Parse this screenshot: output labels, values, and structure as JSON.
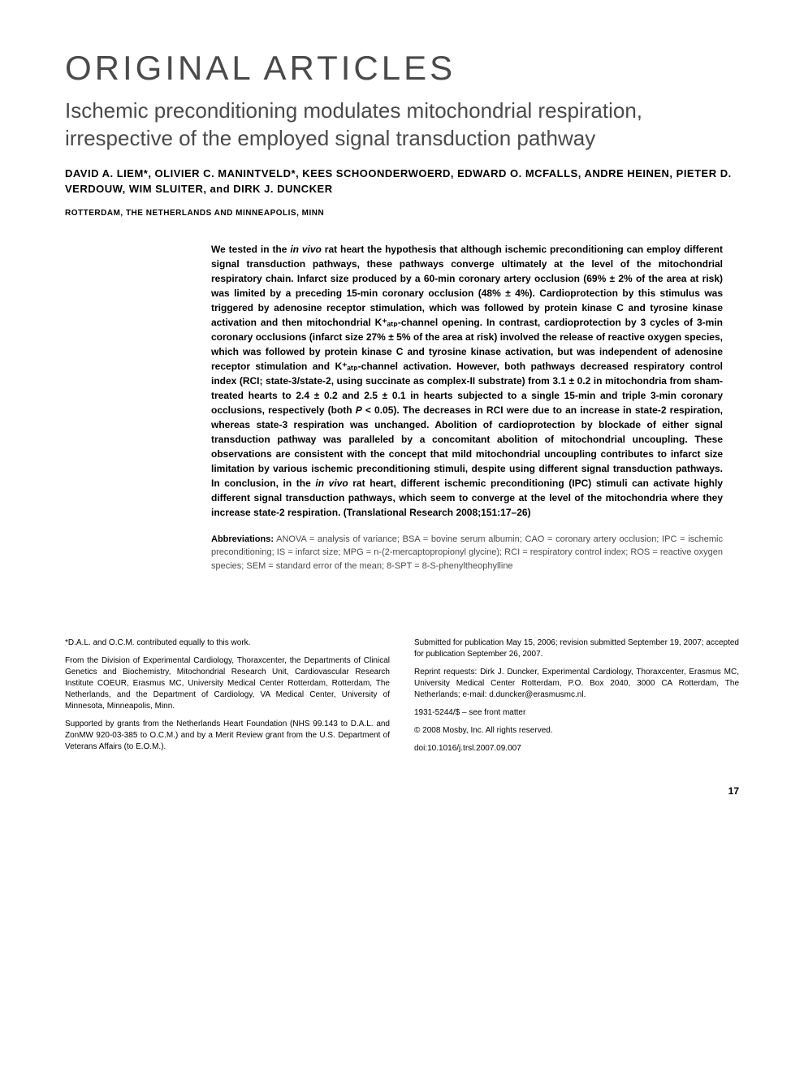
{
  "section_header": "ORIGINAL ARTICLES",
  "article_title": "Ischemic preconditioning modulates mitochondrial respiration, irrespective of the employed signal transduction pathway",
  "authors": "DAVID A. LIEM*, OLIVIER C. MANINTVELD*, KEES SCHOONDERWOERD, EDWARD O. MCFALLS, ANDRE HEINEN, PIETER D. VERDOUW, WIM SLUITER, and DIRK J. DUNCKER",
  "affiliation_line": "ROTTERDAM, THE NETHERLANDS AND MINNEAPOLIS, MINN",
  "abstract_pre": "We tested in the ",
  "abstract_italic1": "in vivo",
  "abstract_mid": " rat heart the hypothesis that although ischemic preconditioning can employ different signal transduction pathways, these pathways converge ultimately at the level of the mitochondrial respiratory chain. Infarct size produced by a 60-min coronary artery occlusion (69% ± 2% of the area at risk) was limited by a preceding 15-min coronary occlusion (48% ± 4%). Cardioprotection by this stimulus was triggered by adenosine receptor stimulation, which was followed by protein kinase C and tyrosine kinase activation and then mitochondrial K⁺ₐₜₚ-channel opening. In contrast, cardioprotection by 3 cycles of 3-min coronary occlusions (infarct size 27% ± 5% of the area at risk) involved the release of reactive oxygen species, which was followed by protein kinase C and tyrosine kinase activation, but was independent of adenosine receptor stimulation and K⁺ₐₜₚ-channel activation. However, both pathways decreased respiratory control index (RCI; state-3/state-2, using succinate as complex-II substrate) from 3.1 ± 0.2 in mitochondria from sham-treated hearts to 2.4 ± 0.2 and 2.5 ± 0.1 in hearts subjected to a single 15-min and triple 3-min coronary occlusions, respectively (both ",
  "abstract_italic2": "P",
  "abstract_mid2": " < 0.05). The decreases in RCI were due to an increase in state-2 respiration, whereas state-3 respiration was unchanged. Abolition of cardioprotection by blockade of either signal transduction pathway was paralleled by a concomitant abolition of mitochondrial uncoupling. These observations are consistent with the concept that mild mitochondrial uncoupling contributes to infarct size limitation by various ischemic preconditioning stimuli, despite using different signal transduction pathways. In conclusion, in the ",
  "abstract_italic3": "in vivo",
  "abstract_end": " rat heart, different ischemic preconditioning (IPC) stimuli can activate highly different signal transduction pathways, which seem to converge at the level of the mitochondria where they increase state-2 respiration. (Translational Research 2008;151:17–26)",
  "abbreviations_label": "Abbreviations:",
  "abbreviations_text": " ANOVA = analysis of variance; BSA = bovine serum albumin; CAO = coronary artery occlusion; IPC = ischemic preconditioning; IS = infarct size; MPG = n-(2-mercaptopropionyl glycine); RCI = respiratory control index; ROS = reactive oxygen species; SEM = standard error of the mean; 8-SPT = 8-S-phenyltheophylline",
  "footnote_left_1": "*D.A.L. and O.C.M. contributed equally to this work.",
  "footnote_left_2": "From the Division of Experimental Cardiology, Thoraxcenter, the Departments of Clinical Genetics and Biochemistry, Mitochondrial Research Unit, Cardiovascular Research Institute COEUR, Erasmus MC, University Medical Center Rotterdam, Rotterdam, The Netherlands, and the Department of Cardiology, VA Medical Center, University of Minnesota, Minneapolis, Minn.",
  "footnote_left_3": "Supported by grants from the Netherlands Heart Foundation (NHS 99.143 to D.A.L. and ZonMW 920-03-385 to O.C.M.) and by a Merit Review grant from the U.S. Department of Veterans Affairs (to E.O.M.).",
  "footnote_right_1": "Submitted for publication May 15, 2006; revision submitted September 19, 2007; accepted for publication September 26, 2007.",
  "footnote_right_2": "Reprint requests: Dirk J. Duncker, Experimental Cardiology, Thoraxcenter, Erasmus MC, University Medical Center Rotterdam, P.O. Box 2040, 3000 CA Rotterdam, The Netherlands; e-mail: d.duncker@erasmusmc.nl.",
  "footnote_right_3": "1931-5244/$ – see front matter",
  "footnote_right_4": "© 2008 Mosby, Inc. All rights reserved.",
  "footnote_right_5": "doi:10.1016/j.trsl.2007.09.007",
  "page_number": "17"
}
